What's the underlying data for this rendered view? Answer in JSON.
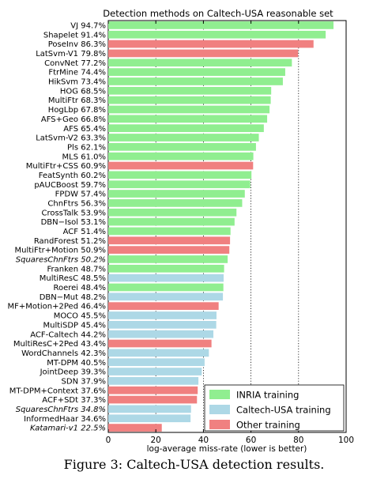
{
  "chart_data": {
    "type": "bar",
    "orientation": "horizontal",
    "title": "Detection methods on Caltech-USA reasonable set",
    "xlabel": "log-average miss-rate (lower is better)",
    "ylabel": "",
    "xlim": [
      0,
      100
    ],
    "xticks": [
      "0",
      "20",
      "40",
      "60",
      "80",
      "100"
    ],
    "grid": "vertical dotted at 20, 40, 60, 80",
    "legend_position": "bottom-right",
    "colors": {
      "INRIA training": "#90ee90",
      "Caltech-USA training": "#add8e6",
      "Other training": "#f08080"
    },
    "series": [
      {
        "name": "INRIA training"
      },
      {
        "name": "Caltech-USA training"
      },
      {
        "name": "Other training"
      }
    ],
    "bars": [
      {
        "label": "VJ 94.7%",
        "value": 94.7,
        "group": "INRIA training",
        "italic": false
      },
      {
        "label": "Shapelet 91.4%",
        "value": 91.4,
        "group": "INRIA training",
        "italic": false
      },
      {
        "label": "PoseInv 86.3%",
        "value": 86.3,
        "group": "Other training",
        "italic": false
      },
      {
        "label": "LatSvm-V1 79.8%",
        "value": 79.8,
        "group": "Other training",
        "italic": false
      },
      {
        "label": "ConvNet 77.2%",
        "value": 77.2,
        "group": "INRIA training",
        "italic": false
      },
      {
        "label": "FtrMine 74.4%",
        "value": 74.4,
        "group": "INRIA training",
        "italic": false
      },
      {
        "label": "HikSvm 73.4%",
        "value": 73.4,
        "group": "INRIA training",
        "italic": false
      },
      {
        "label": "HOG 68.5%",
        "value": 68.5,
        "group": "INRIA training",
        "italic": false
      },
      {
        "label": "MultiFtr 68.3%",
        "value": 68.3,
        "group": "INRIA training",
        "italic": false
      },
      {
        "label": "HogLbp 67.8%",
        "value": 67.8,
        "group": "INRIA training",
        "italic": false
      },
      {
        "label": "AFS+Geo 66.8%",
        "value": 66.8,
        "group": "INRIA training",
        "italic": false
      },
      {
        "label": "AFS 65.4%",
        "value": 65.4,
        "group": "INRIA training",
        "italic": false
      },
      {
        "label": "LatSvm-V2 63.3%",
        "value": 63.3,
        "group": "INRIA training",
        "italic": false
      },
      {
        "label": "Pls 62.1%",
        "value": 62.1,
        "group": "INRIA training",
        "italic": false
      },
      {
        "label": "MLS 61.0%",
        "value": 61.0,
        "group": "INRIA training",
        "italic": false
      },
      {
        "label": "MultiFtr+CSS 60.9%",
        "value": 60.9,
        "group": "Other training",
        "italic": false
      },
      {
        "label": "FeatSynth 60.2%",
        "value": 60.2,
        "group": "INRIA training",
        "italic": false
      },
      {
        "label": "pAUCBoost 59.7%",
        "value": 59.7,
        "group": "INRIA training",
        "italic": false
      },
      {
        "label": "FPDW 57.4%",
        "value": 57.4,
        "group": "INRIA training",
        "italic": false
      },
      {
        "label": "ChnFtrs 56.3%",
        "value": 56.3,
        "group": "INRIA training",
        "italic": false
      },
      {
        "label": "CrossTalk 53.9%",
        "value": 53.9,
        "group": "INRIA training",
        "italic": false
      },
      {
        "label": "DBN−Isol 53.1%",
        "value": 53.1,
        "group": "INRIA training",
        "italic": false
      },
      {
        "label": "ACF 51.4%",
        "value": 51.4,
        "group": "INRIA training",
        "italic": false
      },
      {
        "label": "RandForest 51.2%",
        "value": 51.2,
        "group": "Other training",
        "italic": false
      },
      {
        "label": "MultiFtr+Motion 50.9%",
        "value": 50.9,
        "group": "Other training",
        "italic": false
      },
      {
        "label": "SquaresChnFtrs 50.2%",
        "value": 50.2,
        "group": "INRIA training",
        "italic": true
      },
      {
        "label": "Franken 48.7%",
        "value": 48.7,
        "group": "INRIA training",
        "italic": false
      },
      {
        "label": "MultiResC 48.5%",
        "value": 48.5,
        "group": "Caltech-USA training",
        "italic": false
      },
      {
        "label": "Roerei 48.4%",
        "value": 48.4,
        "group": "INRIA training",
        "italic": false
      },
      {
        "label": "DBN−Mut 48.2%",
        "value": 48.2,
        "group": "Caltech-USA training",
        "italic": false
      },
      {
        "label": "MF+Motion+2Ped 46.4%",
        "value": 46.4,
        "group": "Other training",
        "italic": false
      },
      {
        "label": "MOCO 45.5%",
        "value": 45.5,
        "group": "Caltech-USA training",
        "italic": false
      },
      {
        "label": "MultiSDP 45.4%",
        "value": 45.4,
        "group": "Caltech-USA training",
        "italic": false
      },
      {
        "label": "ACF-Caltech 44.2%",
        "value": 44.2,
        "group": "Caltech-USA training",
        "italic": false
      },
      {
        "label": "MultiResC+2Ped 43.4%",
        "value": 43.4,
        "group": "Other training",
        "italic": false
      },
      {
        "label": "WordChannels 42.3%",
        "value": 42.3,
        "group": "Caltech-USA training",
        "italic": false
      },
      {
        "label": "MT-DPM 40.5%",
        "value": 40.5,
        "group": "Caltech-USA training",
        "italic": false
      },
      {
        "label": "JointDeep 39.3%",
        "value": 39.3,
        "group": "Caltech-USA training",
        "italic": false
      },
      {
        "label": "SDN 37.9%",
        "value": 37.9,
        "group": "Caltech-USA training",
        "italic": false
      },
      {
        "label": "MT-DPM+Context 37.6%",
        "value": 37.6,
        "group": "Other training",
        "italic": false
      },
      {
        "label": "ACF+SDt 37.3%",
        "value": 37.3,
        "group": "Other training",
        "italic": false
      },
      {
        "label": "SquaresChnFtrs 34.8%",
        "value": 34.8,
        "group": "Caltech-USA training",
        "italic": true
      },
      {
        "label": "InformedHaar 34.6%",
        "value": 34.6,
        "group": "Caltech-USA training",
        "italic": false
      },
      {
        "label": "Katamari-v1 22.5%",
        "value": 22.5,
        "group": "Other training",
        "italic": true
      }
    ]
  },
  "caption": "Figure 3: Caltech-USA detection results."
}
